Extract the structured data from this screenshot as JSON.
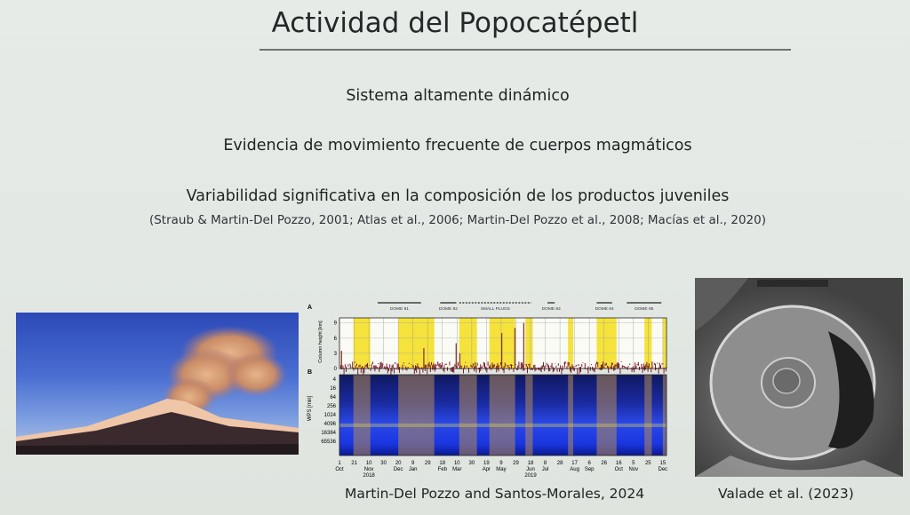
{
  "slide": {
    "title": "Actividad del Popocatépetl",
    "points": [
      "Sistema altamente dinámico",
      "Evidencia de movimiento frecuente de cuerpos magmáticos",
      "Variabilidad significativa en la composición de los productos juveniles"
    ],
    "references": "(Straub & Martin-Del Pozzo, 2001; Atlas et al., 2006; Martin-Del Pozzo et al., 2008; Macías et al., 2020)",
    "caption_center": "Martin-Del Pozzo and Santos-Morales, 2024",
    "caption_right": "Valade et al. (2023)"
  },
  "chart_data": {
    "type": "bar",
    "panel_a": {
      "label": "A",
      "ylabel": "Column height [km]",
      "ylim": [
        0,
        10
      ],
      "yticks": [
        "0",
        "3",
        "6",
        "9"
      ],
      "ytick_values": [
        0,
        3,
        6,
        9
      ],
      "domes": [
        {
          "name": "DOME 81",
          "start": "2018-11-22",
          "end": "2019-01-20"
        },
        {
          "name": "DOME 82",
          "start": "2019-02-15",
          "end": "2019-03-09"
        },
        {
          "name": "SMALL PLUGS",
          "start": "2019-03-13",
          "end": "2019-06-19",
          "dashed": true
        },
        {
          "name": "DOME 83",
          "start": "2019-07-11",
          "end": "2019-07-21"
        },
        {
          "name": "DOME 84",
          "start": "2019-09-16",
          "end": "2019-10-07"
        },
        {
          "name": "DOME 85",
          "start": "2019-10-27",
          "end": "2019-12-13"
        }
      ],
      "highlight_periods": [
        [
          "2018-10-20",
          "2018-11-12"
        ],
        [
          "2018-12-20",
          "2019-02-07"
        ],
        [
          "2019-03-13",
          "2019-04-06"
        ],
        [
          "2019-04-23",
          "2019-05-28"
        ],
        [
          "2019-06-11",
          "2019-06-21"
        ],
        [
          "2019-08-08",
          "2019-08-15"
        ],
        [
          "2019-09-16",
          "2019-10-13"
        ],
        [
          "2019-11-20",
          "2019-11-30"
        ],
        [
          "2019-12-15",
          "2019-12-20"
        ]
      ],
      "notable_columns": [
        {
          "date": "2018-10-03",
          "height_km": 3.5
        },
        {
          "date": "2019-01-23",
          "height_km": 4
        },
        {
          "date": "2019-03-08",
          "height_km": 5
        },
        {
          "date": "2019-03-13",
          "height_km": 3
        },
        {
          "date": "2019-05-09",
          "height_km": 7
        },
        {
          "date": "2019-05-27",
          "height_km": 8
        },
        {
          "date": "2019-06-08",
          "height_km": 9
        }
      ]
    },
    "panel_b": {
      "label": "B",
      "ylabel": "WPS [min]",
      "yticks": [
        "4",
        "16",
        "64",
        "256",
        "1024",
        "4096",
        "16384",
        "65536"
      ]
    },
    "xlim": [
      "2018-10-01",
      "2019-12-20"
    ],
    "xticks": [
      {
        "day": "1",
        "month": "Oct",
        "date": "2018-10-01"
      },
      {
        "day": "21",
        "month": "",
        "date": "2018-10-21"
      },
      {
        "day": "10",
        "month": "Nov",
        "date": "2018-11-10"
      },
      {
        "day": "30",
        "month": "",
        "date": "2018-11-30"
      },
      {
        "day": "20",
        "month": "Dec",
        "date": "2018-12-20"
      },
      {
        "day": "9",
        "month": "Jan",
        "date": "2019-01-09"
      },
      {
        "day": "29",
        "month": "",
        "date": "2019-01-29"
      },
      {
        "day": "18",
        "month": "Feb",
        "date": "2019-02-18"
      },
      {
        "day": "10",
        "month": "Mar",
        "date": "2019-03-10"
      },
      {
        "day": "30",
        "month": "",
        "date": "2019-03-30"
      },
      {
        "day": "19",
        "month": "Apr",
        "date": "2019-04-19"
      },
      {
        "day": "9",
        "month": "May",
        "date": "2019-05-09"
      },
      {
        "day": "29",
        "month": "",
        "date": "2019-05-29"
      },
      {
        "day": "18",
        "month": "Jun",
        "date": "2019-06-18"
      },
      {
        "day": "8",
        "month": "Jul",
        "date": "2019-07-08"
      },
      {
        "day": "28",
        "month": "",
        "date": "2019-07-28"
      },
      {
        "day": "17",
        "month": "Aug",
        "date": "2019-08-17"
      },
      {
        "day": "6",
        "month": "Sep",
        "date": "2019-09-06"
      },
      {
        "day": "26",
        "month": "",
        "date": "2019-09-26"
      },
      {
        "day": "16",
        "month": "Oct",
        "date": "2019-10-16"
      },
      {
        "day": "5",
        "month": "Nov",
        "date": "2019-11-05"
      },
      {
        "day": "25",
        "month": "",
        "date": "2019-11-25"
      },
      {
        "day": "15",
        "month": "Dec",
        "date": "2019-12-15"
      }
    ],
    "years": [
      {
        "label": "2018",
        "date": "2018-11-10"
      },
      {
        "label": "2019",
        "date": "2019-06-18"
      }
    ],
    "colors": {
      "highlight": "#f5e23a",
      "column": "#7a1a2a",
      "spectrogram_low": "#1a2fd0",
      "spectrogram_high": "#b08a5a"
    }
  }
}
